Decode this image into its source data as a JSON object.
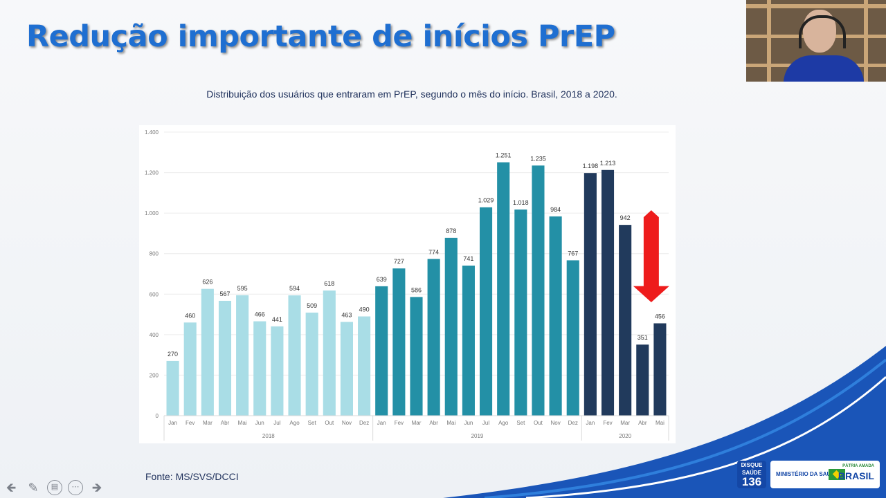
{
  "slide": {
    "title": "Redução importante de inícios PrEP",
    "subtitle": "Distribuição dos usuários que entraram em PrEP, segundo o mês do início. Brasil, 2018 a 2020.",
    "source": "Fonte: MS/SVS/DCCI"
  },
  "logos": {
    "disque_line1": "DISQUE",
    "disque_line2": "SAÚDE",
    "disque_number": "136",
    "ministry": "MINISTÉRIO DA SAÚDE",
    "patria": "PÁTRIA AMADA",
    "brasil": "BRASIL"
  },
  "controls": [
    {
      "name": "previous-slide-icon",
      "glyph": "🡸"
    },
    {
      "name": "pen-icon",
      "glyph": "✎"
    },
    {
      "name": "subtitles-icon",
      "glyph": "▤"
    },
    {
      "name": "more-options-icon",
      "glyph": "⋯"
    },
    {
      "name": "next-slide-icon",
      "glyph": "🡺"
    }
  ],
  "colors": {
    "y2018": "#a9dde6",
    "y2019": "#2390a6",
    "y2020": "#213a5c",
    "arrow": "#ee1c1c",
    "title": "#1f6fd1"
  },
  "chart_data": {
    "type": "bar",
    "ylim": [
      0,
      1400
    ],
    "yticks": [
      0,
      200,
      400,
      600,
      800,
      1000,
      1200,
      1400
    ],
    "ytick_labels": [
      "0",
      "200",
      "400",
      "600",
      "800",
      "1.000",
      "1.200",
      "1.400"
    ],
    "grid": true,
    "groups": [
      {
        "year": "2018",
        "months": [
          "Jan",
          "Fev",
          "Mar",
          "Abr",
          "Mai",
          "Jun",
          "Jul",
          "Ago",
          "Set",
          "Out",
          "Nov",
          "Dez"
        ],
        "values": [
          270,
          460,
          626,
          567,
          595,
          466,
          441,
          594,
          509,
          618,
          463,
          490
        ],
        "labels": [
          "270",
          "460",
          "626",
          "567",
          "595",
          "466",
          "441",
          "594",
          "509",
          "618",
          "463",
          "490"
        ]
      },
      {
        "year": "2019",
        "months": [
          "Jan",
          "Fev",
          "Mar",
          "Abr",
          "Mai",
          "Jun",
          "Jul",
          "Ago",
          "Set",
          "Out",
          "Nov",
          "Dez"
        ],
        "values": [
          639,
          727,
          586,
          774,
          878,
          741,
          1029,
          1251,
          1018,
          1235,
          984,
          767
        ],
        "labels": [
          "639",
          "727",
          "586",
          "774",
          "878",
          "741",
          "1.029",
          "1.251",
          "1.018",
          "1.235",
          "984",
          "767"
        ]
      },
      {
        "year": "2020",
        "months": [
          "Jan",
          "Fev",
          "Mar",
          "Abr",
          "Mai"
        ],
        "values": [
          1198,
          1213,
          942,
          351,
          456
        ],
        "labels": [
          "1.198",
          "1.213",
          "942",
          "351",
          "456"
        ]
      }
    ],
    "annotation": "red down arrow above Abr–Mai 2020"
  }
}
